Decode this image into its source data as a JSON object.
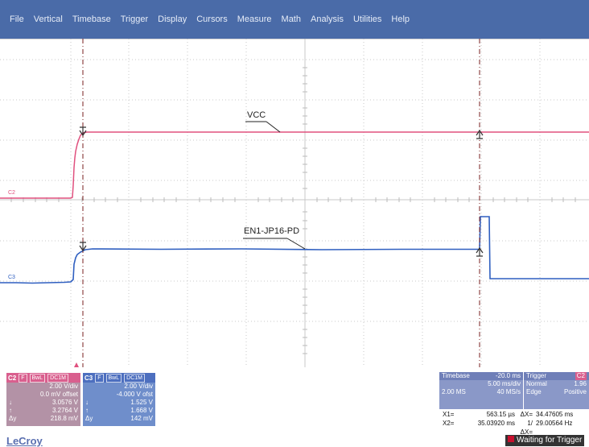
{
  "menu": [
    "File",
    "Vertical",
    "Timebase",
    "Trigger",
    "Display",
    "Cursors",
    "Measure",
    "Math",
    "Analysis",
    "Utilities",
    "Help"
  ],
  "traces": {
    "vcc_label": "VCC",
    "en_label": "EN1-JP16-PD",
    "c2_marker": "C2",
    "c3_marker": "C3",
    "vcc_color": "#e0507e",
    "en_color": "#2f5fc0"
  },
  "c2_panel": {
    "name": "C2",
    "tags": [
      "F",
      "BwL",
      "DC1M"
    ],
    "vdiv": "2.00 V/div",
    "offset": "0.0 mV offset",
    "down_sym": "↓",
    "down": "3.0576 V",
    "up_sym": "↑",
    "up": "3.2764 V",
    "dy_sym": "Δy",
    "dy": "218.8 mV"
  },
  "c3_panel": {
    "name": "C3",
    "tags": [
      "F",
      "BwL",
      "DC1M"
    ],
    "vdiv": "2.00 V/div",
    "offset": "-4.000 V ofst",
    "down_sym": "↓",
    "down": "1.525 V",
    "up_sym": "↑",
    "up": "1.668 V",
    "dy_sym": "Δy",
    "dy": "142 mV"
  },
  "timebase": {
    "title": "Timebase",
    "delay": "-20.0 ms",
    "tdiv": "5.00 ms/div",
    "points": "2.00 MS",
    "rate": "40 MS/s"
  },
  "trigger": {
    "title": "Trigger",
    "channel": "C2",
    "mode": "Normal",
    "level": "1.96",
    "type": "Edge",
    "slope": "Positive"
  },
  "cursors": {
    "x1_label": "X1=",
    "x1": "563.15 µs",
    "dx_label": "ΔX=",
    "dx": "34.47605 ms",
    "x2_label": "X2=",
    "x2": "35.03920 ms",
    "inv_label": "1/ΔX=",
    "inv": "29.00564 Hz"
  },
  "brand": "LeCroy",
  "status": "Waiting for Trigger"
}
